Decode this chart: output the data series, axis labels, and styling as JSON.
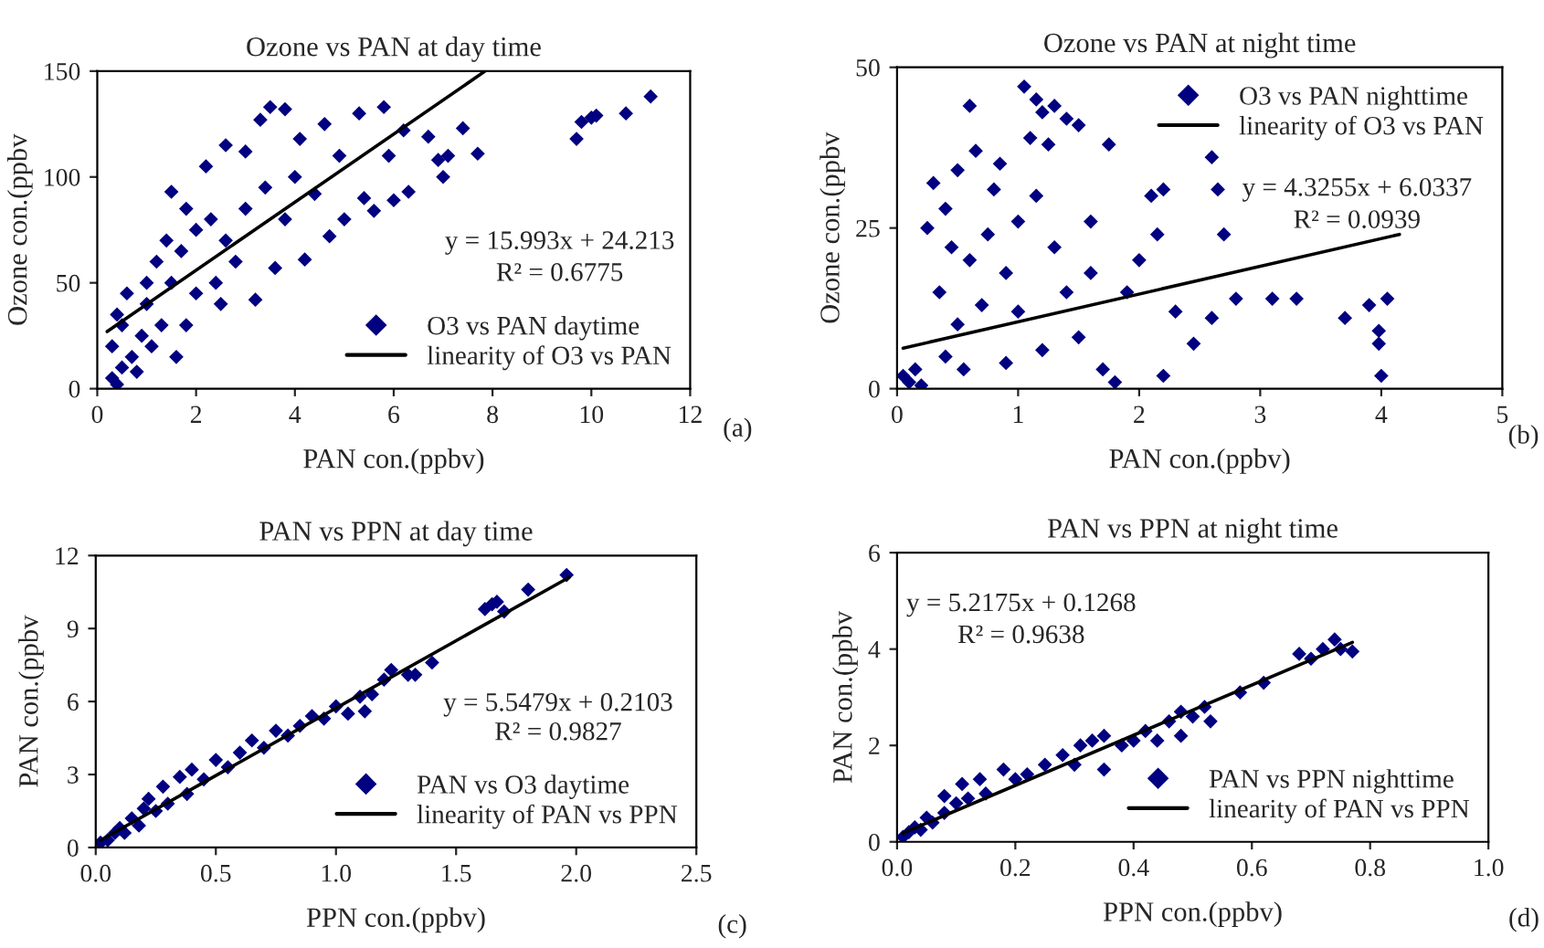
{
  "chart_data": [
    {
      "type": "scatter",
      "title": "Ozone vs PAN at day time",
      "xlabel": "PAN con.(ppbv)",
      "ylabel": "Ozone con.(ppbv",
      "xlim": [
        0,
        12
      ],
      "xticks": [
        0,
        2,
        4,
        6,
        8,
        10,
        12
      ],
      "ylim": [
        0,
        150
      ],
      "yticks": [
        0,
        50,
        100,
        150
      ],
      "grid": false,
      "legend": "bottom right",
      "annotations": [
        "y = 15.993x + 24.213",
        "R² = 0.6775",
        "(a)"
      ],
      "series": [
        {
          "name": "O3 vs PAN daytime",
          "color": "#000080",
          "marker": "diamond",
          "x": [
            0.3,
            0.4,
            0.5,
            0.3,
            0.4,
            0.6,
            0.5,
            0.7,
            0.8,
            0.9,
            1.0,
            1.0,
            1.1,
            1.2,
            1.3,
            1.4,
            1.5,
            1.5,
            1.6,
            1.7,
            1.8,
            1.8,
            2.0,
            2.0,
            2.2,
            2.3,
            2.4,
            2.5,
            2.6,
            2.6,
            2.8,
            3.0,
            3.0,
            3.2,
            3.3,
            3.4,
            3.5,
            3.6,
            3.8,
            3.8,
            4.0,
            4.2,
            4.1,
            4.4,
            4.6,
            4.7,
            4.9,
            5.0,
            5.3,
            5.4,
            5.6,
            5.8,
            5.9,
            6.0,
            6.2,
            6.3,
            6.7,
            6.9,
            7.0,
            7.1,
            7.4,
            7.7,
            9.7,
            9.8,
            10.0,
            10.1,
            10.7,
            11.2
          ],
          "values": [
            5,
            2,
            10,
            20,
            35,
            45,
            30,
            15,
            8,
            25,
            50,
            40,
            20,
            60,
            30,
            70,
            93,
            50,
            15,
            65,
            85,
            30,
            75,
            45,
            105,
            80,
            50,
            40,
            115,
            70,
            60,
            112,
            85,
            42,
            127,
            95,
            133,
            57,
            132,
            80,
            100,
            61,
            118,
            92,
            125,
            72,
            110,
            80,
            130,
            90,
            84,
            133,
            110,
            89,
            122,
            93,
            119,
            108,
            100,
            110,
            123,
            111,
            118,
            126,
            128,
            129,
            130,
            138
          ]
        },
        {
          "type": "line",
          "name": "linearity of O3 vs PAN",
          "color": "#000000",
          "marker": "none",
          "x": [
            0.2,
            7.85
          ],
          "values": [
            27,
            150
          ]
        }
      ]
    },
    {
      "type": "scatter",
      "title": "Ozone vs PAN at night time",
      "xlabel": "PAN con.(ppbv)",
      "ylabel": "Ozone con.(ppbv",
      "xlim": [
        0,
        5
      ],
      "xticks": [
        0,
        1,
        2,
        3,
        4,
        5
      ],
      "ylim": [
        0,
        50
      ],
      "yticks": [
        0,
        25,
        50
      ],
      "grid": false,
      "legend": "top right",
      "annotations": [
        "y = 4.3255x + 6.0337",
        "R² = 0.0939",
        "(b)"
      ],
      "series": [
        {
          "name": "O3 vs PAN nighttime",
          "color": "#000080",
          "marker": "diamond",
          "x": [
            0.05,
            0.1,
            0.15,
            0.2,
            0.25,
            0.3,
            0.35,
            0.4,
            0.4,
            0.45,
            0.5,
            0.5,
            0.55,
            0.6,
            0.6,
            0.65,
            0.7,
            0.75,
            0.8,
            0.85,
            0.9,
            0.9,
            1.0,
            1.0,
            1.05,
            1.1,
            1.15,
            1.15,
            1.2,
            1.2,
            1.25,
            1.3,
            1.3,
            1.4,
            1.4,
            1.5,
            1.5,
            1.6,
            1.6,
            1.7,
            1.75,
            1.8,
            1.9,
            2.0,
            2.1,
            2.15,
            2.2,
            2.2,
            2.3,
            2.45,
            2.6,
            2.6,
            2.65,
            2.7,
            2.8,
            3.1,
            3.3,
            3.7,
            3.9,
            3.98,
            3.98,
            4.0,
            4.05
          ],
          "values": [
            2,
            1,
            3,
            0.5,
            25,
            32,
            15,
            28,
            5,
            22,
            34,
            10,
            3,
            44,
            20,
            37,
            13,
            24,
            31,
            35,
            18,
            4,
            26,
            12,
            47,
            39,
            45,
            30,
            43,
            6,
            38,
            22,
            44,
            15,
            42,
            41,
            8,
            26,
            18,
            3,
            38,
            1,
            15,
            20,
            30,
            24,
            31,
            2,
            12,
            7,
            36,
            11,
            31,
            24,
            14,
            14,
            14,
            11,
            13,
            9,
            7,
            2,
            14
          ]
        },
        {
          "type": "line",
          "name": "linearity of O3 vs PAN",
          "color": "#000000",
          "marker": "none",
          "x": [
            0.05,
            4.15
          ],
          "values": [
            6.3,
            24
          ]
        }
      ]
    },
    {
      "type": "scatter",
      "title": "PAN vs PPN at day time",
      "xlabel": "PPN con.(ppbv)",
      "ylabel": "PAN con.(ppbv",
      "xlim": [
        0,
        2.5
      ],
      "xticks": [
        {
          "value": 0,
          "label": "0.0"
        },
        {
          "value": 0.5,
          "label": "0.5"
        },
        {
          "value": 1,
          "label": "1.0"
        },
        {
          "value": 1.5,
          "label": "1.5"
        },
        {
          "value": 2,
          "label": "2.0"
        },
        {
          "value": 2.5,
          "label": "2.5"
        }
      ],
      "ylim": [
        0,
        12
      ],
      "yticks": [
        0,
        3,
        6,
        9,
        12
      ],
      "grid": false,
      "legend": "bottom right",
      "annotations": [
        "y = 5.5479x + 0.2103",
        "R² = 0.9827",
        "(c)"
      ],
      "series": [
        {
          "name": "PAN vs O3 daytime",
          "color": "#000080",
          "marker": "diamond",
          "x": [
            0.02,
            0.05,
            0.08,
            0.1,
            0.12,
            0.15,
            0.18,
            0.2,
            0.22,
            0.25,
            0.28,
            0.3,
            0.35,
            0.38,
            0.4,
            0.45,
            0.5,
            0.55,
            0.6,
            0.65,
            0.7,
            0.75,
            0.8,
            0.85,
            0.9,
            0.95,
            1.0,
            1.05,
            1.1,
            1.12,
            1.15,
            1.2,
            1.23,
            1.3,
            1.33,
            1.4,
            1.62,
            1.65,
            1.67,
            1.7,
            1.8,
            1.96
          ],
          "values": [
            0.2,
            0.3,
            0.6,
            0.8,
            0.6,
            1.2,
            0.9,
            1.6,
            2.0,
            1.5,
            2.5,
            1.8,
            2.9,
            2.2,
            3.2,
            2.8,
            3.6,
            3.3,
            3.9,
            4.4,
            4.1,
            4.8,
            4.6,
            5.0,
            5.4,
            5.3,
            5.8,
            5.5,
            6.2,
            5.6,
            6.3,
            6.9,
            7.3,
            7.1,
            7.1,
            7.6,
            9.8,
            10.0,
            10.1,
            9.7,
            10.6,
            11.2
          ]
        },
        {
          "type": "line",
          "name": "linearity of PAN vs PPN",
          "color": "#000000",
          "marker": "none",
          "x": [
            0.02,
            1.97
          ],
          "values": [
            0.3,
            11.1
          ]
        }
      ]
    },
    {
      "type": "scatter",
      "title": "PAN vs PPN at night time",
      "xlabel": "PPN con.(ppbv)",
      "ylabel": "PAN con.(ppbv",
      "xlim": [
        0,
        1
      ],
      "xticks": [
        {
          "value": 0,
          "label": "0.0"
        },
        {
          "value": 0.2,
          "label": "0.2"
        },
        {
          "value": 0.4,
          "label": "0.4"
        },
        {
          "value": 0.6,
          "label": "0.6"
        },
        {
          "value": 0.8,
          "label": "0.8"
        },
        {
          "value": 1,
          "label": "1.0"
        }
      ],
      "ylim": [
        0,
        6
      ],
      "yticks": [
        0,
        2,
        4,
        6
      ],
      "grid": false,
      "legend": "bottom right",
      "annotations": [
        "y = 5.2175x + 0.1268",
        "R² = 0.9638",
        "(d)"
      ],
      "series": [
        {
          "name": "PAN vs PPN nighttime",
          "color": "#000080",
          "marker": "diamond",
          "x": [
            0.01,
            0.02,
            0.03,
            0.04,
            0.05,
            0.06,
            0.08,
            0.08,
            0.1,
            0.11,
            0.12,
            0.14,
            0.15,
            0.18,
            0.2,
            0.22,
            0.25,
            0.28,
            0.3,
            0.31,
            0.33,
            0.35,
            0.35,
            0.38,
            0.4,
            0.42,
            0.44,
            0.46,
            0.48,
            0.48,
            0.5,
            0.52,
            0.53,
            0.58,
            0.62,
            0.68,
            0.7,
            0.72,
            0.74,
            0.75,
            0.77
          ],
          "values": [
            0.1,
            0.2,
            0.3,
            0.25,
            0.5,
            0.4,
            0.95,
            0.6,
            0.8,
            1.2,
            0.9,
            1.3,
            1.0,
            1.5,
            1.3,
            1.4,
            1.6,
            1.8,
            1.6,
            2.0,
            2.1,
            1.5,
            2.2,
            2.0,
            2.1,
            2.3,
            2.1,
            2.5,
            2.2,
            2.7,
            2.6,
            2.8,
            2.5,
            3.1,
            3.3,
            3.9,
            3.8,
            4.0,
            4.2,
            4.0,
            3.95
          ]
        },
        {
          "type": "line",
          "name": "linearity of PAN vs PPN",
          "color": "#000000",
          "marker": "none",
          "x": [
            0.01,
            0.77
          ],
          "values": [
            0.18,
            4.14
          ]
        }
      ]
    }
  ]
}
